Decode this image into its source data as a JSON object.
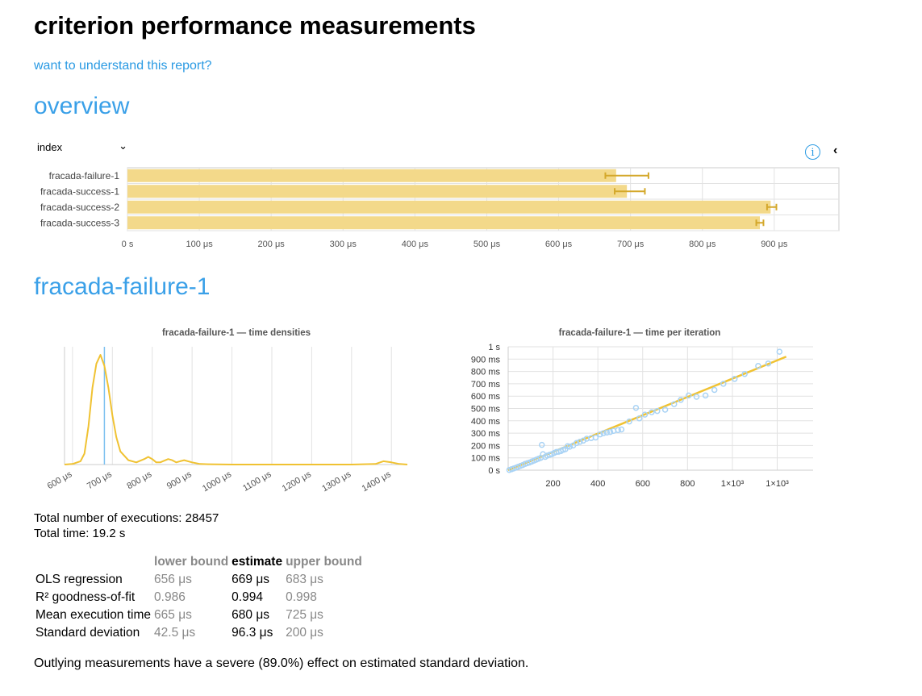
{
  "page": {
    "title": "criterion performance measurements",
    "help_link": "want to understand this report?",
    "overview_heading": "overview",
    "sort_select": "index"
  },
  "overview_chart": {
    "type": "bar",
    "categories": [
      "fracada-failure-1",
      "fracada-success-1",
      "fracada-success-2",
      "fracada-success-3"
    ],
    "values": [
      680,
      695,
      895,
      880
    ],
    "error_low": [
      665,
      678,
      890,
      875
    ],
    "error_high": [
      725,
      720,
      903,
      885
    ],
    "x_ticks": [
      "0 s",
      "100 μs",
      "200 μs",
      "300 μs",
      "400 μs",
      "500 μs",
      "600 μs",
      "700 μs",
      "800 μs",
      "900 μs"
    ],
    "xlim": [
      0,
      990
    ],
    "bar_color": "#f3d98a",
    "err_color": "#d4a82b"
  },
  "bench": {
    "heading": "fracada-failure-1",
    "density_title": "fracada-failure-1 — time densities",
    "regression_title": "fracada-failure-1 — time per iteration",
    "total_executions": "Total number of executions: 28457",
    "total_time": "Total time: 19.2 s",
    "table": {
      "headers": [
        "",
        "lower bound",
        "estimate",
        "upper bound"
      ],
      "rows": [
        [
          "OLS regression",
          "656 μs",
          "669 μs",
          "683 μs"
        ],
        [
          "R² goodness-of-fit",
          "0.986",
          "0.994",
          "0.998"
        ],
        [
          "Mean execution time",
          "665 μs",
          "680 μs",
          "725 μs"
        ],
        [
          "Standard deviation",
          "42.5 μs",
          "96.3 μs",
          "200 μs"
        ]
      ]
    },
    "outlier_text": "Outlying measurements have a severe (89.0%) effect on estimated standard deviation."
  },
  "chart_data": [
    {
      "type": "bar",
      "title": "",
      "categories": [
        "fracada-failure-1",
        "fracada-success-1",
        "fracada-success-2",
        "fracada-success-3"
      ],
      "values_us": [
        680,
        695,
        895,
        880
      ],
      "x_ticks": [
        "0 s",
        "100 μs",
        "200 μs",
        "300 μs",
        "400 μs",
        "500 μs",
        "600 μs",
        "700 μs",
        "800 μs",
        "900 μs"
      ]
    },
    {
      "type": "line",
      "title": "fracada-failure-1 — time densities",
      "x_ticks": [
        "600 μs",
        "700 μs",
        "800 μs",
        "900 μs",
        "1000 μs",
        "1100 μs",
        "1200 μs",
        "1300 μs",
        "1400 μs"
      ],
      "xlim": [
        580,
        1440
      ],
      "density_x": [
        580,
        600,
        620,
        630,
        640,
        650,
        660,
        670,
        680,
        690,
        700,
        710,
        720,
        740,
        760,
        780,
        790,
        800,
        810,
        820,
        840,
        850,
        860,
        870,
        880,
        900,
        920,
        940,
        1000,
        1100,
        1200,
        1300,
        1360,
        1380,
        1400,
        1420,
        1440
      ],
      "density_y": [
        0,
        0.5,
        3,
        10,
        35,
        70,
        92,
        100,
        90,
        70,
        45,
        25,
        12,
        4,
        2,
        5,
        7,
        5,
        2,
        2,
        5,
        4,
        2,
        3,
        4,
        2,
        0.5,
        0.3,
        0,
        0,
        0,
        0,
        0.5,
        3,
        2,
        0.5,
        0
      ],
      "mean_line_us": 680,
      "line_color": "#f0c232",
      "mean_color": "#7cc0ef"
    },
    {
      "type": "scatter",
      "title": "fracada-failure-1 — time per iteration",
      "y_ticks": [
        "0 s",
        "100 ms",
        "200 ms",
        "300 ms",
        "400 ms",
        "500 ms",
        "600 ms",
        "700 ms",
        "800 ms",
        "900 ms",
        "1 s"
      ],
      "x_ticks": [
        "200",
        "400",
        "600",
        "800",
        "1×10³",
        "1×10³"
      ],
      "x_tick_values": [
        200,
        400,
        600,
        800,
        1000,
        1200
      ],
      "xlim": [
        0,
        1360
      ],
      "ylim": [
        0,
        1000
      ],
      "points": [
        [
          5,
          2
        ],
        [
          15,
          8
        ],
        [
          25,
          14
        ],
        [
          35,
          20
        ],
        [
          45,
          28
        ],
        [
          55,
          35
        ],
        [
          65,
          42
        ],
        [
          75,
          50
        ],
        [
          85,
          56
        ],
        [
          95,
          62
        ],
        [
          105,
          70
        ],
        [
          115,
          78
        ],
        [
          125,
          85
        ],
        [
          135,
          92
        ],
        [
          145,
          100
        ],
        [
          150,
          205
        ],
        [
          155,
          130
        ],
        [
          165,
          108
        ],
        [
          175,
          118
        ],
        [
          185,
          125
        ],
        [
          195,
          130
        ],
        [
          205,
          140
        ],
        [
          215,
          148
        ],
        [
          225,
          150
        ],
        [
          235,
          155
        ],
        [
          245,
          165
        ],
        [
          255,
          170
        ],
        [
          265,
          195
        ],
        [
          275,
          190
        ],
        [
          290,
          200
        ],
        [
          305,
          220
        ],
        [
          320,
          230
        ],
        [
          335,
          240
        ],
        [
          350,
          255
        ],
        [
          370,
          260
        ],
        [
          390,
          265
        ],
        [
          410,
          290
        ],
        [
          425,
          300
        ],
        [
          440,
          305
        ],
        [
          455,
          310
        ],
        [
          470,
          318
        ],
        [
          490,
          325
        ],
        [
          505,
          330
        ],
        [
          540,
          395
        ],
        [
          570,
          505
        ],
        [
          585,
          420
        ],
        [
          610,
          450
        ],
        [
          640,
          470
        ],
        [
          665,
          480
        ],
        [
          700,
          490
        ],
        [
          740,
          535
        ],
        [
          770,
          570
        ],
        [
          805,
          605
        ],
        [
          840,
          595
        ],
        [
          880,
          605
        ],
        [
          920,
          650
        ],
        [
          960,
          700
        ],
        [
          1010,
          740
        ],
        [
          1055,
          780
        ],
        [
          1115,
          845
        ],
        [
          1160,
          865
        ],
        [
          1210,
          960
        ]
      ],
      "fit": [
        [
          0,
          0
        ],
        [
          1240,
          920
        ]
      ],
      "point_color": "#a9d3f5",
      "fit_color": "#f0c232"
    }
  ]
}
